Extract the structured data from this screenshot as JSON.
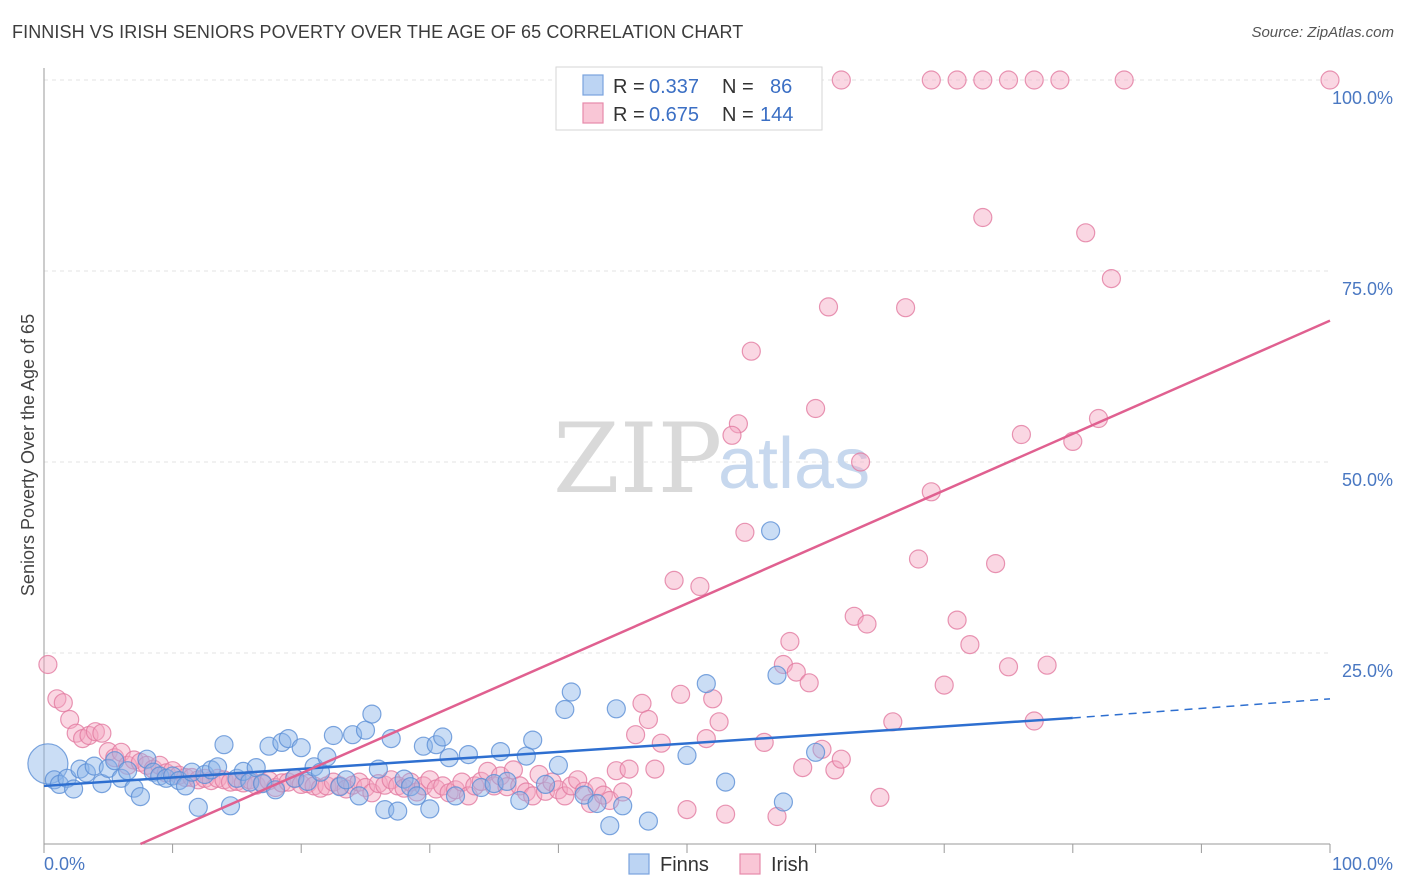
{
  "title": "FINNISH VS IRISH SENIORS POVERTY OVER THE AGE OF 65 CORRELATION CHART",
  "source": "Source: ZipAtlas.com",
  "watermark": {
    "zip": "ZIP",
    "atlas": "atlas"
  },
  "chart_data": {
    "type": "scatter",
    "ylabel": "Seniors Poverty Over the Age of 65",
    "xlabel": "",
    "xlim": [
      0,
      100
    ],
    "ylim": [
      0,
      100
    ],
    "x_tick_labels": [
      "0.0%",
      "100.0%"
    ],
    "y_tick_labels": [
      "25.0%",
      "50.0%",
      "75.0%",
      "100.0%"
    ],
    "y_ticks": [
      25,
      50,
      75,
      100
    ],
    "grid": true,
    "legend_position": "top-center",
    "legend": {
      "entries": [
        {
          "r_label": "R =",
          "r_value": "0.337",
          "n_label": "N =",
          "n_value": "86"
        },
        {
          "r_label": "R =",
          "r_value": "0.675",
          "n_label": "N =",
          "n_value": "144"
        }
      ]
    },
    "bottom_legend": [
      "Finns",
      "Irish"
    ],
    "series": [
      {
        "name": "Finns",
        "color": "#8ab4e8",
        "edge": "#5b8fd6",
        "trend_color": "#2e6fd0",
        "trend": {
          "x0": 0,
          "y0": 7.6,
          "x1": 80,
          "y1": 16.5,
          "dash_to_x": 100,
          "dash_to_y": 19
        },
        "points": [
          [
            0.3,
            10.5
          ],
          [
            0.8,
            8.4
          ],
          [
            1.2,
            7.8
          ],
          [
            1.8,
            8.6
          ],
          [
            2.3,
            7.2
          ],
          [
            2.8,
            9.8
          ],
          [
            3.3,
            9.3
          ],
          [
            3.9,
            10.2
          ],
          [
            4.5,
            7.9
          ],
          [
            5,
            9.9
          ],
          [
            5.5,
            10.9
          ],
          [
            6,
            8.6
          ],
          [
            6.5,
            9.6
          ],
          [
            7,
            7.3
          ],
          [
            7.5,
            6.2
          ],
          [
            8,
            11.1
          ],
          [
            8.5,
            9.4
          ],
          [
            9,
            8.9
          ],
          [
            9.5,
            8.6
          ],
          [
            10,
            8.9
          ],
          [
            10.5,
            8.3
          ],
          [
            11,
            7.6
          ],
          [
            11.5,
            9.4
          ],
          [
            12,
            4.8
          ],
          [
            12.5,
            9.1
          ],
          [
            13,
            9.7
          ],
          [
            13.5,
            10.1
          ],
          [
            14,
            13
          ],
          [
            14.5,
            5
          ],
          [
            15,
            8.6
          ],
          [
            15.5,
            9.5
          ],
          [
            16,
            8.1
          ],
          [
            16.5,
            10
          ],
          [
            17,
            7.9
          ],
          [
            17.5,
            12.8
          ],
          [
            18,
            7.1
          ],
          [
            18.5,
            13.3
          ],
          [
            19,
            13.8
          ],
          [
            19.5,
            8.6
          ],
          [
            20,
            12.6
          ],
          [
            20.5,
            8.2
          ],
          [
            21,
            10.1
          ],
          [
            21.5,
            9.4
          ],
          [
            22,
            11.4
          ],
          [
            22.5,
            14.2
          ],
          [
            23,
            7.5
          ],
          [
            23.5,
            8.4
          ],
          [
            24,
            14.3
          ],
          [
            24.5,
            6.3
          ],
          [
            25,
            14.9
          ],
          [
            25.5,
            17
          ],
          [
            26,
            9.8
          ],
          [
            26.5,
            4.5
          ],
          [
            27,
            13.8
          ],
          [
            27.5,
            4.3
          ],
          [
            28,
            8.5
          ],
          [
            28.5,
            7.5
          ],
          [
            29,
            6.3
          ],
          [
            29.5,
            12.8
          ],
          [
            30,
            4.6
          ],
          [
            30.5,
            13
          ],
          [
            31,
            14
          ],
          [
            31.5,
            11.3
          ],
          [
            32,
            6.3
          ],
          [
            33,
            11.7
          ],
          [
            34,
            7.4
          ],
          [
            35,
            7.9
          ],
          [
            35.5,
            12.1
          ],
          [
            36,
            8.2
          ],
          [
            37,
            5.7
          ],
          [
            37.5,
            11.5
          ],
          [
            38,
            13.6
          ],
          [
            39,
            7.8
          ],
          [
            40,
            10.3
          ],
          [
            40.5,
            17.6
          ],
          [
            41,
            19.9
          ],
          [
            42,
            6.4
          ],
          [
            43,
            5.3
          ],
          [
            44,
            2.4
          ],
          [
            44.5,
            17.7
          ],
          [
            45,
            5
          ],
          [
            47,
            3
          ],
          [
            50,
            11.6
          ],
          [
            51.5,
            21
          ],
          [
            53,
            8.1
          ],
          [
            56.5,
            41
          ],
          [
            57,
            22.1
          ],
          [
            57.5,
            5.5
          ],
          [
            60,
            12
          ]
        ]
      },
      {
        "name": "Irish",
        "color": "#f4a7c0",
        "edge": "#e27aa0",
        "trend_color": "#e06090",
        "trend": {
          "x0": 7.5,
          "y0": 0,
          "x1": 100,
          "y1": 68.5
        },
        "points": [
          [
            0.3,
            23.5
          ],
          [
            1,
            19
          ],
          [
            1.5,
            18.5
          ],
          [
            2,
            16.3
          ],
          [
            2.5,
            14.5
          ],
          [
            3,
            13.8
          ],
          [
            3.5,
            14.2
          ],
          [
            4,
            14.7
          ],
          [
            4.5,
            14.5
          ],
          [
            5,
            12.1
          ],
          [
            5.5,
            11.3
          ],
          [
            6,
            12
          ],
          [
            6.5,
            10.3
          ],
          [
            7,
            11
          ],
          [
            7.5,
            10.7
          ],
          [
            8,
            10.3
          ],
          [
            8.5,
            9.8
          ],
          [
            9,
            10.3
          ],
          [
            9.5,
            9.3
          ],
          [
            10,
            9.6
          ],
          [
            10.5,
            9
          ],
          [
            11,
            8.7
          ],
          [
            11.5,
            8.7
          ],
          [
            12,
            8.4
          ],
          [
            12.5,
            8.6
          ],
          [
            13,
            8.3
          ],
          [
            13.5,
            8.6
          ],
          [
            14,
            8.4
          ],
          [
            14.5,
            8.1
          ],
          [
            15,
            8.2
          ],
          [
            15.5,
            8
          ],
          [
            16,
            8.4
          ],
          [
            16.5,
            7.7
          ],
          [
            17,
            8
          ],
          [
            17.5,
            8.3
          ],
          [
            18,
            7.4
          ],
          [
            18.5,
            8
          ],
          [
            19,
            8.1
          ],
          [
            19.5,
            8.6
          ],
          [
            20,
            7.8
          ],
          [
            20.5,
            7.9
          ],
          [
            21,
            7.6
          ],
          [
            21.5,
            7.3
          ],
          [
            22,
            7.6
          ],
          [
            22.5,
            8.1
          ],
          [
            23,
            7.6
          ],
          [
            23.5,
            7.2
          ],
          [
            24,
            7.7
          ],
          [
            24.5,
            8.1
          ],
          [
            25,
            7.4
          ],
          [
            25.5,
            6.7
          ],
          [
            26,
            7.9
          ],
          [
            26.5,
            7.7
          ],
          [
            27,
            8.4
          ],
          [
            27.5,
            7.6
          ],
          [
            28,
            7.3
          ],
          [
            28.5,
            8.1
          ],
          [
            29,
            6.8
          ],
          [
            29.5,
            7.6
          ],
          [
            30,
            8.4
          ],
          [
            30.5,
            7.2
          ],
          [
            31,
            7.6
          ],
          [
            31.5,
            6.7
          ],
          [
            32,
            7.1
          ],
          [
            32.5,
            8.1
          ],
          [
            33,
            6.3
          ],
          [
            33.5,
            7.6
          ],
          [
            34,
            8.2
          ],
          [
            34.5,
            9.5
          ],
          [
            35,
            7.6
          ],
          [
            35.5,
            8.9
          ],
          [
            36,
            7.5
          ],
          [
            36.5,
            9.7
          ],
          [
            37,
            7.6
          ],
          [
            37.5,
            6.8
          ],
          [
            38,
            6.3
          ],
          [
            38.5,
            9.1
          ],
          [
            39,
            6.9
          ],
          [
            39.5,
            8.1
          ],
          [
            40,
            7.1
          ],
          [
            40.5,
            6.3
          ],
          [
            41,
            7.6
          ],
          [
            41.5,
            8.4
          ],
          [
            42,
            6.9
          ],
          [
            42.5,
            5.3
          ],
          [
            43,
            7.5
          ],
          [
            43.5,
            6.4
          ],
          [
            44,
            5.7
          ],
          [
            44.5,
            9.6
          ],
          [
            45,
            6.8
          ],
          [
            45.5,
            9.8
          ],
          [
            46,
            14.3
          ],
          [
            46.5,
            18.4
          ],
          [
            47,
            16.3
          ],
          [
            47.5,
            9.8
          ],
          [
            48,
            13.2
          ],
          [
            49,
            34.5
          ],
          [
            49.5,
            19.6
          ],
          [
            50,
            4.5
          ],
          [
            51,
            33.7
          ],
          [
            51.5,
            13.8
          ],
          [
            52,
            19
          ],
          [
            52.5,
            16
          ],
          [
            53,
            3.9
          ],
          [
            54,
            55
          ],
          [
            54.5,
            40.8
          ],
          [
            55,
            64.5
          ],
          [
            56,
            13.3
          ],
          [
            57,
            3.6
          ],
          [
            57.5,
            23.5
          ],
          [
            58,
            26.5
          ],
          [
            58.5,
            22.5
          ],
          [
            59,
            10
          ],
          [
            59.5,
            21.1
          ],
          [
            60,
            57
          ],
          [
            60.5,
            12.4
          ],
          [
            61,
            70.3
          ],
          [
            61.5,
            9.7
          ],
          [
            62,
            11.1
          ],
          [
            63,
            29.8
          ],
          [
            63.5,
            50
          ],
          [
            64,
            28.8
          ],
          [
            65,
            6.1
          ],
          [
            66,
            16
          ],
          [
            67,
            70.2
          ],
          [
            68,
            37.3
          ],
          [
            69,
            46.1
          ],
          [
            70,
            20.8
          ],
          [
            71,
            29.3
          ],
          [
            72,
            26.1
          ],
          [
            73,
            82
          ],
          [
            74,
            36.7
          ],
          [
            75,
            23.2
          ],
          [
            76,
            53.6
          ],
          [
            77,
            16.1
          ],
          [
            78,
            23.4
          ],
          [
            80,
            52.7
          ],
          [
            81,
            80
          ],
          [
            82,
            55.7
          ],
          [
            83,
            74
          ],
          [
            62,
            100
          ],
          [
            69,
            100
          ],
          [
            71,
            100
          ],
          [
            73,
            100
          ],
          [
            75,
            100
          ],
          [
            77,
            100
          ],
          [
            79,
            100
          ],
          [
            84,
            100
          ],
          [
            100,
            100
          ],
          [
            53.5,
            53.5
          ]
        ]
      }
    ]
  }
}
